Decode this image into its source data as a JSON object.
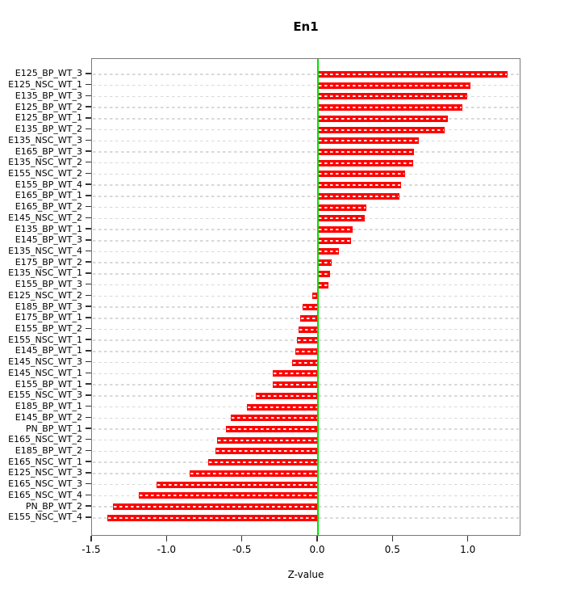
{
  "title": "En1",
  "chart_data": {
    "type": "bar",
    "orientation": "horizontal",
    "title": "En1",
    "xlabel": "Z-value",
    "ylabel": "",
    "xlim": [
      -1.5,
      1.35
    ],
    "x_ticks": [
      -1.5,
      -1.0,
      -0.5,
      0.0,
      0.5,
      1.0
    ],
    "x_tick_labels": [
      "-1.5",
      "-1.0",
      "-0.5",
      "0.0",
      "0.5",
      "1.0"
    ],
    "grid": true,
    "grid_style": "dashed",
    "legend": "none",
    "zero_line": true,
    "colors": {
      "bar": "#ff0000",
      "bar_stripe": "#ffffff",
      "zero_line": "#00e100",
      "gridline": "#d8d8d8",
      "frame": "#7a7a7a",
      "text": "#000000"
    },
    "categories": [
      "E125_BP_WT_3",
      "E125_NSC_WT_1",
      "E135_BP_WT_3",
      "E125_BP_WT_2",
      "E125_BP_WT_1",
      "E135_BP_WT_2",
      "E135_NSC_WT_3",
      "E165_BP_WT_3",
      "E135_NSC_WT_2",
      "E155_NSC_WT_2",
      "E155_BP_WT_4",
      "E165_BP_WT_1",
      "E165_BP_WT_2",
      "E145_NSC_WT_2",
      "E135_BP_WT_1",
      "E145_BP_WT_3",
      "E135_NSC_WT_4",
      "E175_BP_WT_2",
      "E135_NSC_WT_1",
      "E155_BP_WT_3",
      "E125_NSC_WT_2",
      "E185_BP_WT_3",
      "E175_BP_WT_1",
      "E155_BP_WT_2",
      "E155_NSC_WT_1",
      "E145_BP_WT_1",
      "E145_NSC_WT_3",
      "E145_NSC_WT_1",
      "E155_BP_WT_1",
      "E155_NSC_WT_3",
      "E185_BP_WT_1",
      "E145_BP_WT_2",
      "PN_BP_WT_1",
      "E165_NSC_WT_2",
      "E185_BP_WT_2",
      "E165_NSC_WT_1",
      "E125_NSC_WT_3",
      "E165_NSC_WT_3",
      "E165_NSC_WT_4",
      "PN_BP_WT_2",
      "E155_NSC_WT_4"
    ],
    "values": [
      1.26,
      1.01,
      0.99,
      0.96,
      0.86,
      0.84,
      0.67,
      0.64,
      0.63,
      0.58,
      0.55,
      0.54,
      0.32,
      0.31,
      0.23,
      0.22,
      0.14,
      0.09,
      0.08,
      0.07,
      -0.04,
      -0.1,
      -0.12,
      -0.13,
      -0.14,
      -0.15,
      -0.17,
      -0.3,
      -0.3,
      -0.41,
      -0.47,
      -0.58,
      -0.61,
      -0.67,
      -0.68,
      -0.73,
      -0.85,
      -1.07,
      -1.19,
      -1.36,
      -1.4
    ]
  }
}
